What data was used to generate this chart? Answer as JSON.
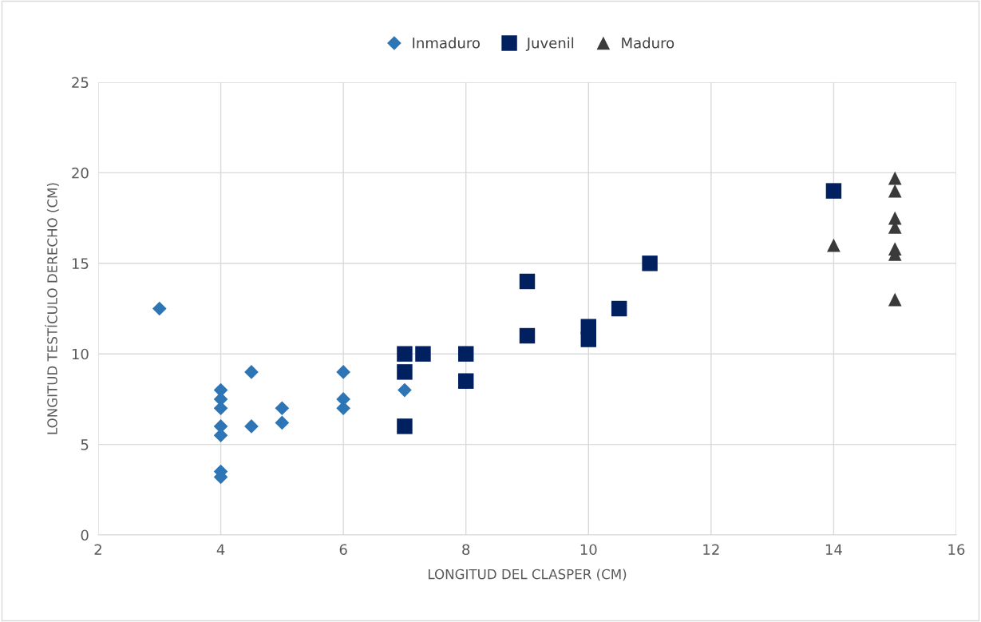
{
  "chart_data": {
    "type": "scatter",
    "xlabel": "LONGITUD DEL CLASPER (CM)",
    "ylabel": "LONGITUD TESTÍCULO DERECHO (CM)",
    "xlim": [
      2,
      16
    ],
    "xticks": [
      2,
      4,
      6,
      8,
      10,
      12,
      14,
      16
    ],
    "ylim": [
      0,
      25
    ],
    "yticks": [
      0,
      5,
      10,
      15,
      20,
      25
    ],
    "grid": true,
    "legend": "top",
    "series": [
      {
        "name": "Inmaduro",
        "color": "#2e75b6",
        "marker": "diamond",
        "x": [
          3,
          4,
          4,
          4,
          4,
          4,
          4,
          4,
          4.5,
          4.5,
          5,
          5,
          6,
          6,
          6,
          7
        ],
        "values": [
          12.5,
          8,
          7.5,
          7,
          6,
          5.5,
          3.5,
          3.2,
          9,
          6,
          7,
          6.2,
          9,
          7.5,
          7,
          8
        ]
      },
      {
        "name": "Juvenil",
        "color": "#002060",
        "marker": "square",
        "x": [
          7,
          7,
          7,
          7.3,
          8,
          8,
          9,
          9,
          10,
          10,
          10.5,
          11,
          14
        ],
        "values": [
          10,
          9,
          6,
          10,
          10,
          8.5,
          14,
          11,
          11.5,
          10.8,
          12.5,
          15,
          19
        ]
      },
      {
        "name": "Maduro",
        "color": "#3a3a3a",
        "marker": "triangle",
        "x": [
          14,
          15,
          15,
          15,
          15,
          15,
          15,
          15
        ],
        "values": [
          16,
          19.7,
          19,
          17.5,
          17,
          15.8,
          15.5,
          13
        ]
      }
    ]
  }
}
